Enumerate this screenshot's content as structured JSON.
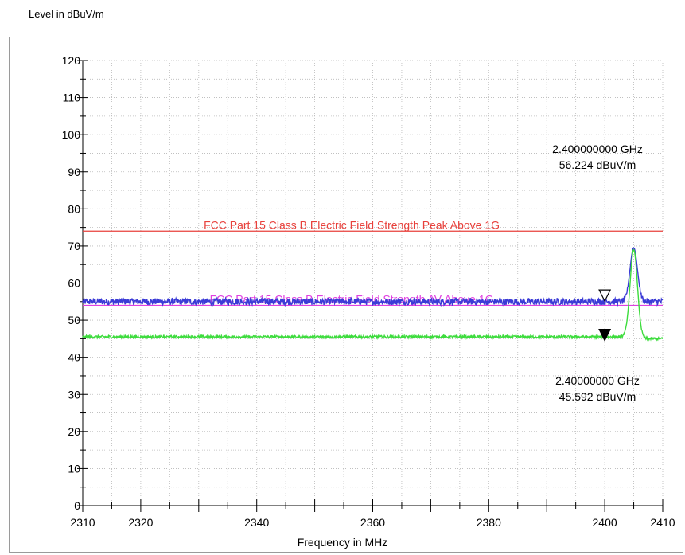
{
  "chart_data": {
    "type": "line",
    "title": "",
    "ylabel": "Level in dBuV/m",
    "xlabel": "Frequency in MHz",
    "xlim": [
      2310,
      2410
    ],
    "ylim": [
      0,
      120
    ],
    "x_ticks": [
      "2310",
      "2320",
      "2340",
      "2360",
      "2380",
      "2400",
      "2410"
    ],
    "y_ticks": [
      "0",
      "10",
      "20",
      "30",
      "40",
      "50",
      "60",
      "70",
      "80",
      "90",
      "100",
      "110",
      "120"
    ],
    "grid": true,
    "limit_lines": [
      {
        "label": "FCC Part 15 Class B Electric Field Strength Peak Above 1G",
        "value": 74,
        "color": "#e8413c"
      },
      {
        "label": "FCC Part 15 Class B Electric Field Strength AV Above 1G",
        "value": 54,
        "color": "#e040e0"
      }
    ],
    "series": [
      {
        "color": "#3b3bd6",
        "baseline": 55,
        "noise": 0.9,
        "peak": {
          "x": 2405,
          "value": 69.5,
          "width": 0.9
        }
      },
      {
        "color": "#3ddc3d",
        "baseline": 45.5,
        "noise": 0.35,
        "end_value": 45,
        "peak": {
          "x": 2405,
          "value": 69,
          "width": 0.9
        }
      }
    ],
    "markers": [
      {
        "x": 2400,
        "y": 56.224,
        "symbol": "open-triangle",
        "freq_label": "2.400000000 GHz",
        "level_label": "56.224 dBuV/m"
      },
      {
        "x": 2400,
        "y": 45.592,
        "symbol": "filled-triangle",
        "freq_label": "2.40000000 GHz",
        "level_label": "45.592 dBuV/m"
      }
    ]
  }
}
